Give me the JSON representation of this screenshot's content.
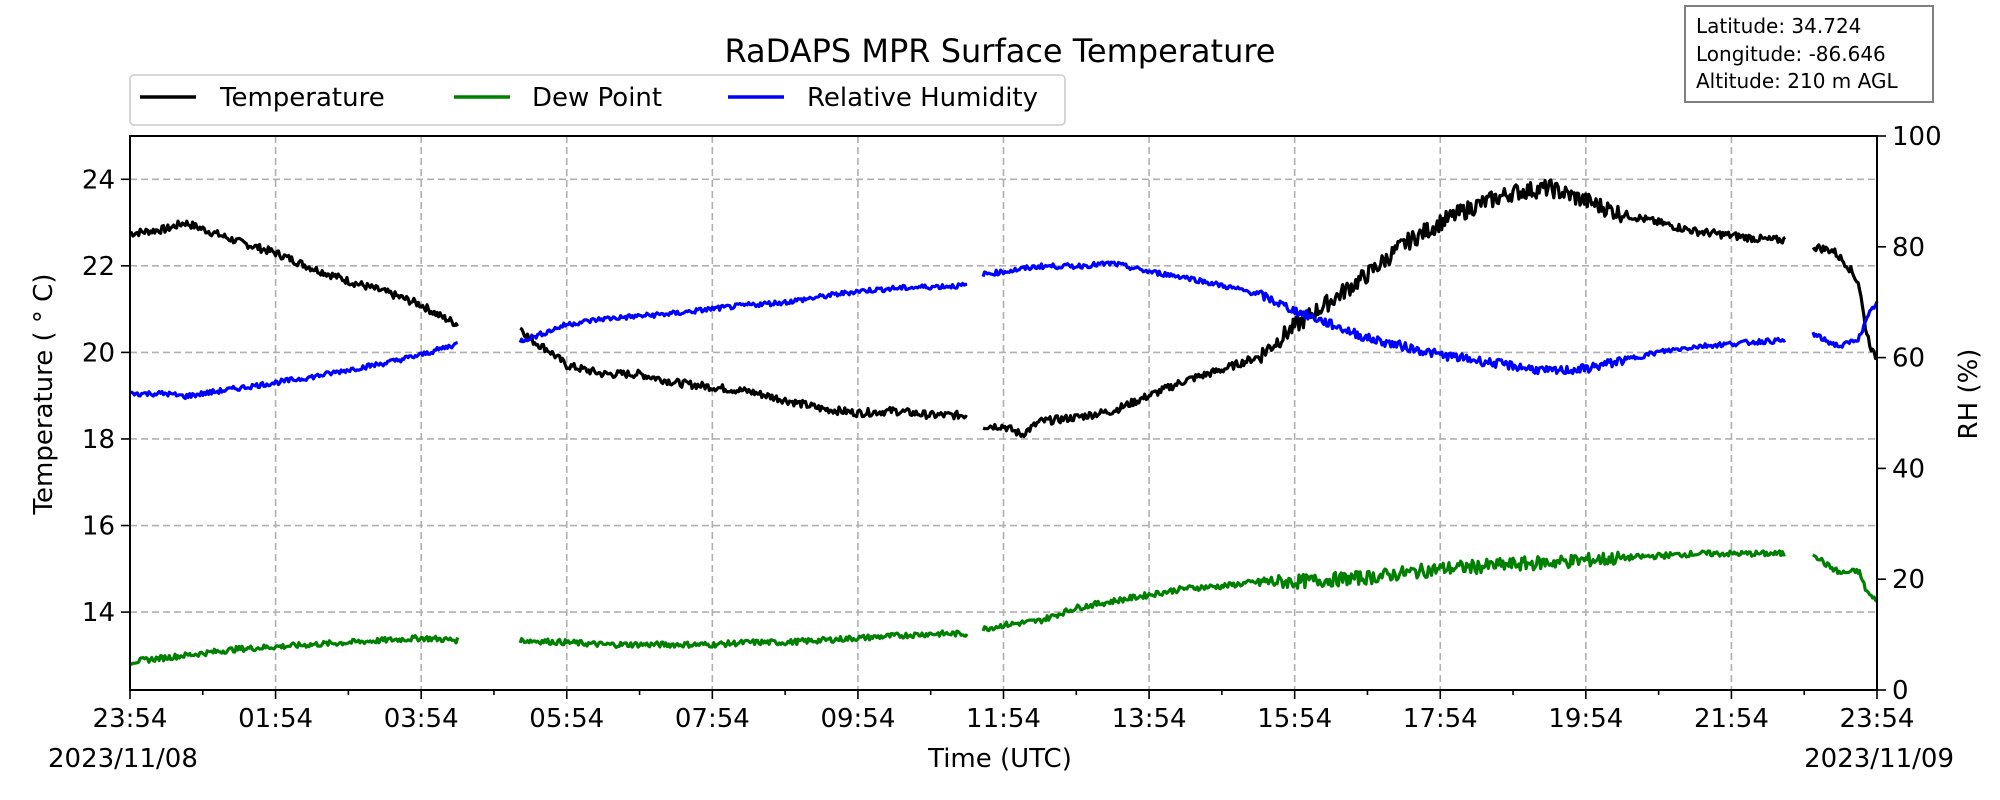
{
  "chart_data": {
    "type": "line",
    "title": "RaDAPS MPR Surface Temperature",
    "xlabel": "Time (UTC)",
    "ylabel_left": "Temperature ($^\\circ$C)",
    "ylabel_left_display": "Temperature ( ° C)",
    "ylabel_right": "RH (%)",
    "x_tick_labels": [
      "23:54",
      "01:54",
      "03:54",
      "05:54",
      "07:54",
      "09:54",
      "11:54",
      "13:54",
      "15:54",
      "17:54",
      "19:54",
      "21:54",
      "23:54"
    ],
    "x_date_labels": {
      "start": "2023/11/08",
      "end": "2023/11/09"
    },
    "x_range_hours": [
      0,
      24
    ],
    "ylim_left": [
      12.2,
      25
    ],
    "yticks_left": [
      "14",
      "16",
      "18",
      "20",
      "22",
      "24"
    ],
    "ylim_right": [
      0,
      100
    ],
    "yticks_right": [
      "0",
      "20",
      "40",
      "60",
      "80",
      "100"
    ],
    "grid": true,
    "legend_placement": "top-left",
    "info_box": {
      "latitude": "Latitude: 34.724",
      "longitude": "Longitude: -86.646",
      "altitude": "Altitude: 210 m AGL"
    },
    "gaps_hours": [
      [
        4.5,
        5.35
      ],
      [
        11.5,
        11.7
      ],
      [
        22.75,
        23.1
      ]
    ],
    "series": [
      {
        "name": "Temperature",
        "color": "#000000",
        "axis": "left",
        "points": [
          [
            0.0,
            22.75
          ],
          [
            0.5,
            22.85
          ],
          [
            0.75,
            23.0
          ],
          [
            1.0,
            22.85
          ],
          [
            1.5,
            22.55
          ],
          [
            2.0,
            22.3
          ],
          [
            2.5,
            21.95
          ],
          [
            3.0,
            21.65
          ],
          [
            3.5,
            21.4
          ],
          [
            4.0,
            21.1
          ],
          [
            4.25,
            20.85
          ],
          [
            4.5,
            20.65
          ],
          [
            5.35,
            20.6
          ],
          [
            5.5,
            20.3
          ],
          [
            5.75,
            20.05
          ],
          [
            6.0,
            19.7
          ],
          [
            6.25,
            19.6
          ],
          [
            6.5,
            19.5
          ],
          [
            7.0,
            19.5
          ],
          [
            7.5,
            19.3
          ],
          [
            8.0,
            19.2
          ],
          [
            8.5,
            19.1
          ],
          [
            9.0,
            18.9
          ],
          [
            9.5,
            18.7
          ],
          [
            10.0,
            18.6
          ],
          [
            10.5,
            18.65
          ],
          [
            11.0,
            18.55
          ],
          [
            11.5,
            18.55
          ],
          [
            11.7,
            18.3
          ],
          [
            12.0,
            18.3
          ],
          [
            12.25,
            18.1
          ],
          [
            12.5,
            18.4
          ],
          [
            13.0,
            18.5
          ],
          [
            13.5,
            18.65
          ],
          [
            14.0,
            19.0
          ],
          [
            14.5,
            19.35
          ],
          [
            15.0,
            19.6
          ],
          [
            15.5,
            19.9
          ],
          [
            16.0,
            20.6
          ],
          [
            16.5,
            21.2
          ],
          [
            17.0,
            21.8
          ],
          [
            17.5,
            22.5
          ],
          [
            18.0,
            23.0
          ],
          [
            18.5,
            23.4
          ],
          [
            19.0,
            23.7
          ],
          [
            19.5,
            23.8
          ],
          [
            20.0,
            23.5
          ],
          [
            20.5,
            23.2
          ],
          [
            21.0,
            23.0
          ],
          [
            21.5,
            22.8
          ],
          [
            22.0,
            22.7
          ],
          [
            22.5,
            22.6
          ],
          [
            22.75,
            22.6
          ],
          [
            23.1,
            22.45
          ],
          [
            23.4,
            22.35
          ],
          [
            23.6,
            22.0
          ],
          [
            23.75,
            21.6
          ],
          [
            23.85,
            20.5
          ],
          [
            23.95,
            19.95
          ],
          [
            24.0,
            19.9
          ]
        ]
      },
      {
        "name": "Dew Point",
        "color": "#008000",
        "axis": "left",
        "points": [
          [
            0.0,
            12.85
          ],
          [
            0.5,
            12.95
          ],
          [
            1.0,
            13.05
          ],
          [
            1.5,
            13.15
          ],
          [
            2.0,
            13.2
          ],
          [
            2.5,
            13.25
          ],
          [
            3.0,
            13.3
          ],
          [
            3.5,
            13.35
          ],
          [
            4.0,
            13.4
          ],
          [
            4.5,
            13.35
          ],
          [
            5.35,
            13.35
          ],
          [
            6.0,
            13.3
          ],
          [
            6.5,
            13.25
          ],
          [
            7.0,
            13.25
          ],
          [
            7.5,
            13.25
          ],
          [
            8.0,
            13.25
          ],
          [
            8.5,
            13.3
          ],
          [
            9.0,
            13.3
          ],
          [
            9.5,
            13.35
          ],
          [
            10.0,
            13.4
          ],
          [
            10.5,
            13.45
          ],
          [
            11.0,
            13.5
          ],
          [
            11.5,
            13.5
          ],
          [
            11.7,
            13.6
          ],
          [
            12.0,
            13.7
          ],
          [
            12.5,
            13.8
          ],
          [
            13.0,
            14.1
          ],
          [
            13.5,
            14.25
          ],
          [
            14.0,
            14.4
          ],
          [
            14.5,
            14.55
          ],
          [
            15.0,
            14.6
          ],
          [
            15.5,
            14.7
          ],
          [
            16.0,
            14.7
          ],
          [
            16.5,
            14.75
          ],
          [
            17.0,
            14.8
          ],
          [
            17.5,
            14.9
          ],
          [
            18.0,
            15.0
          ],
          [
            18.5,
            15.05
          ],
          [
            19.0,
            15.1
          ],
          [
            19.5,
            15.15
          ],
          [
            20.0,
            15.2
          ],
          [
            20.5,
            15.25
          ],
          [
            21.0,
            15.3
          ],
          [
            21.5,
            15.35
          ],
          [
            22.0,
            15.35
          ],
          [
            22.5,
            15.35
          ],
          [
            22.75,
            15.35
          ],
          [
            23.1,
            15.4
          ],
          [
            23.3,
            15.1
          ],
          [
            23.5,
            14.9
          ],
          [
            23.75,
            14.95
          ],
          [
            23.85,
            14.5
          ],
          [
            23.95,
            14.3
          ],
          [
            24.0,
            14.3
          ]
        ]
      },
      {
        "name": "Relative Humidity",
        "color": "#0000ff",
        "axis": "right",
        "points": [
          [
            0.0,
            53.5
          ],
          [
            0.5,
            53.5
          ],
          [
            0.75,
            53.0
          ],
          [
            1.0,
            53.5
          ],
          [
            1.5,
            54.5
          ],
          [
            2.0,
            55.5
          ],
          [
            2.5,
            56.5
          ],
          [
            3.0,
            57.8
          ],
          [
            3.5,
            59.0
          ],
          [
            4.0,
            60.5
          ],
          [
            4.25,
            61.5
          ],
          [
            4.5,
            62.5
          ],
          [
            5.35,
            63.0
          ],
          [
            5.6,
            64.0
          ],
          [
            6.0,
            66.0
          ],
          [
            6.5,
            67.0
          ],
          [
            7.0,
            67.5
          ],
          [
            7.5,
            68.0
          ],
          [
            8.0,
            68.8
          ],
          [
            8.5,
            69.5
          ],
          [
            9.0,
            70.0
          ],
          [
            9.5,
            71.0
          ],
          [
            10.0,
            72.0
          ],
          [
            10.5,
            72.5
          ],
          [
            11.0,
            72.8
          ],
          [
            11.5,
            73.0
          ],
          [
            11.7,
            75.0
          ],
          [
            12.0,
            75.5
          ],
          [
            12.5,
            76.5
          ],
          [
            13.0,
            76.5
          ],
          [
            13.5,
            77.0
          ],
          [
            14.0,
            75.5
          ],
          [
            14.5,
            74.5
          ],
          [
            15.0,
            73.0
          ],
          [
            15.5,
            71.5
          ],
          [
            16.0,
            68.5
          ],
          [
            16.5,
            66.0
          ],
          [
            17.0,
            63.5
          ],
          [
            17.5,
            62.0
          ],
          [
            18.0,
            60.5
          ],
          [
            18.5,
            59.5
          ],
          [
            19.0,
            58.5
          ],
          [
            19.5,
            57.5
          ],
          [
            20.0,
            58.0
          ],
          [
            20.5,
            59.5
          ],
          [
            21.0,
            61.0
          ],
          [
            21.5,
            62.0
          ],
          [
            22.0,
            62.5
          ],
          [
            22.5,
            63.0
          ],
          [
            22.75,
            63.0
          ],
          [
            23.1,
            64.5
          ],
          [
            23.3,
            63.0
          ],
          [
            23.5,
            62.0
          ],
          [
            23.75,
            63.5
          ],
          [
            23.9,
            68.0
          ],
          [
            24.0,
            70.0
          ]
        ]
      }
    ]
  }
}
